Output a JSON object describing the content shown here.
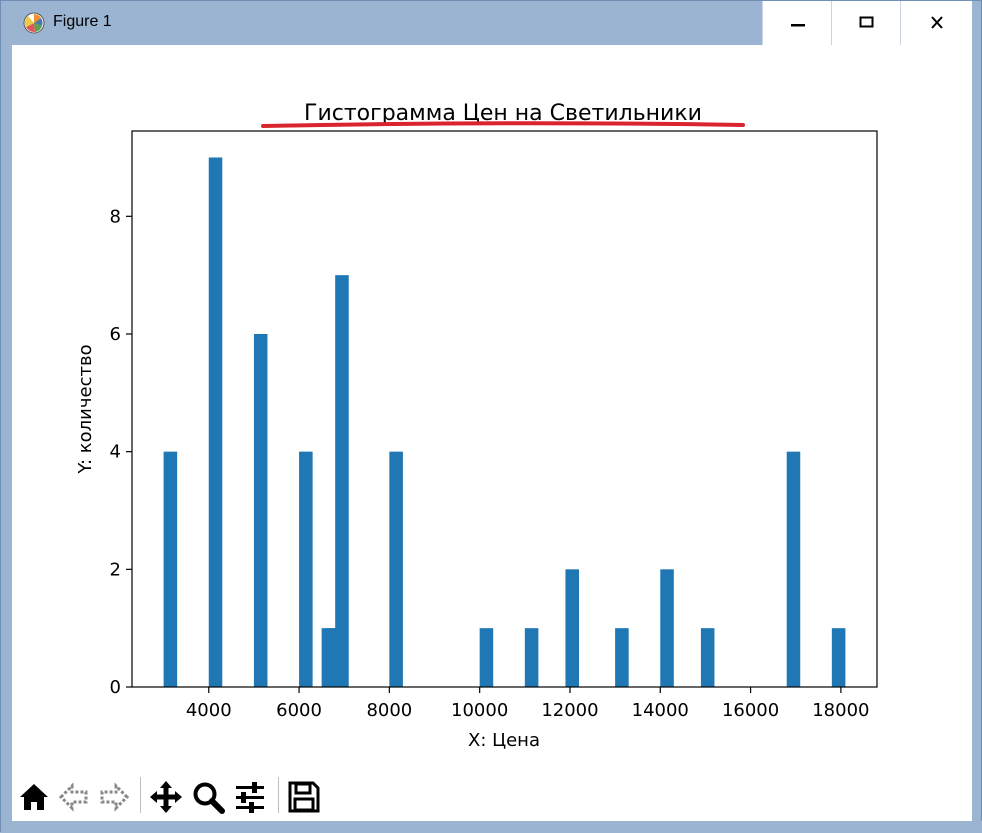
{
  "window": {
    "title": "Figure 1",
    "app_icon": "matplotlib-logo-icon",
    "controls": [
      "minimize-icon",
      "maximize-icon",
      "close-icon"
    ]
  },
  "toolbar": {
    "icons": [
      "home-icon",
      "back-arrow-icon",
      "forward-arrow-icon",
      "pan-move-icon",
      "zoom-magnifier-icon",
      "configure-subplots-icon",
      "save-floppy-icon"
    ]
  },
  "colors": {
    "bar": "#1f77b4",
    "title_underline": "#d9232e",
    "frame": "#9bb4d1"
  },
  "chart_data": {
    "type": "bar",
    "title": "Гистограмма Цен на Светильники",
    "xlabel": "X: Цена",
    "ylabel": "Y: количество",
    "xlim": [
      2300,
      18800
    ],
    "ylim": [
      0,
      9.45
    ],
    "bin_width": 300,
    "bars": [
      {
        "x": 3000,
        "value": 4
      },
      {
        "x": 4000,
        "value": 9
      },
      {
        "x": 5000,
        "value": 6
      },
      {
        "x": 6000,
        "value": 4
      },
      {
        "x": 6500,
        "value": 1
      },
      {
        "x": 6600,
        "value": 1
      },
      {
        "x": 6800,
        "value": 7
      },
      {
        "x": 8000,
        "value": 4
      },
      {
        "x": 10000,
        "value": 1
      },
      {
        "x": 11000,
        "value": 1
      },
      {
        "x": 11900,
        "value": 2
      },
      {
        "x": 13000,
        "value": 1
      },
      {
        "x": 14000,
        "value": 2
      },
      {
        "x": 14900,
        "value": 1
      },
      {
        "x": 16800,
        "value": 4
      },
      {
        "x": 17800,
        "value": 1
      }
    ],
    "xticks": [
      {
        "value": 4000,
        "label": "4000"
      },
      {
        "value": 6000,
        "label": "6000"
      },
      {
        "value": 8000,
        "label": "8000"
      },
      {
        "value": 10000,
        "label": "10000"
      },
      {
        "value": 12000,
        "label": "12000"
      },
      {
        "value": 14000,
        "label": "14000"
      },
      {
        "value": 16000,
        "label": "16000"
      },
      {
        "value": 18000,
        "label": "18000"
      }
    ],
    "yticks": [
      {
        "value": 0,
        "label": "0"
      },
      {
        "value": 2,
        "label": "2"
      },
      {
        "value": 4,
        "label": "4"
      },
      {
        "value": 6,
        "label": "6"
      },
      {
        "value": 8,
        "label": "8"
      }
    ],
    "grid": false,
    "legend": "none"
  }
}
